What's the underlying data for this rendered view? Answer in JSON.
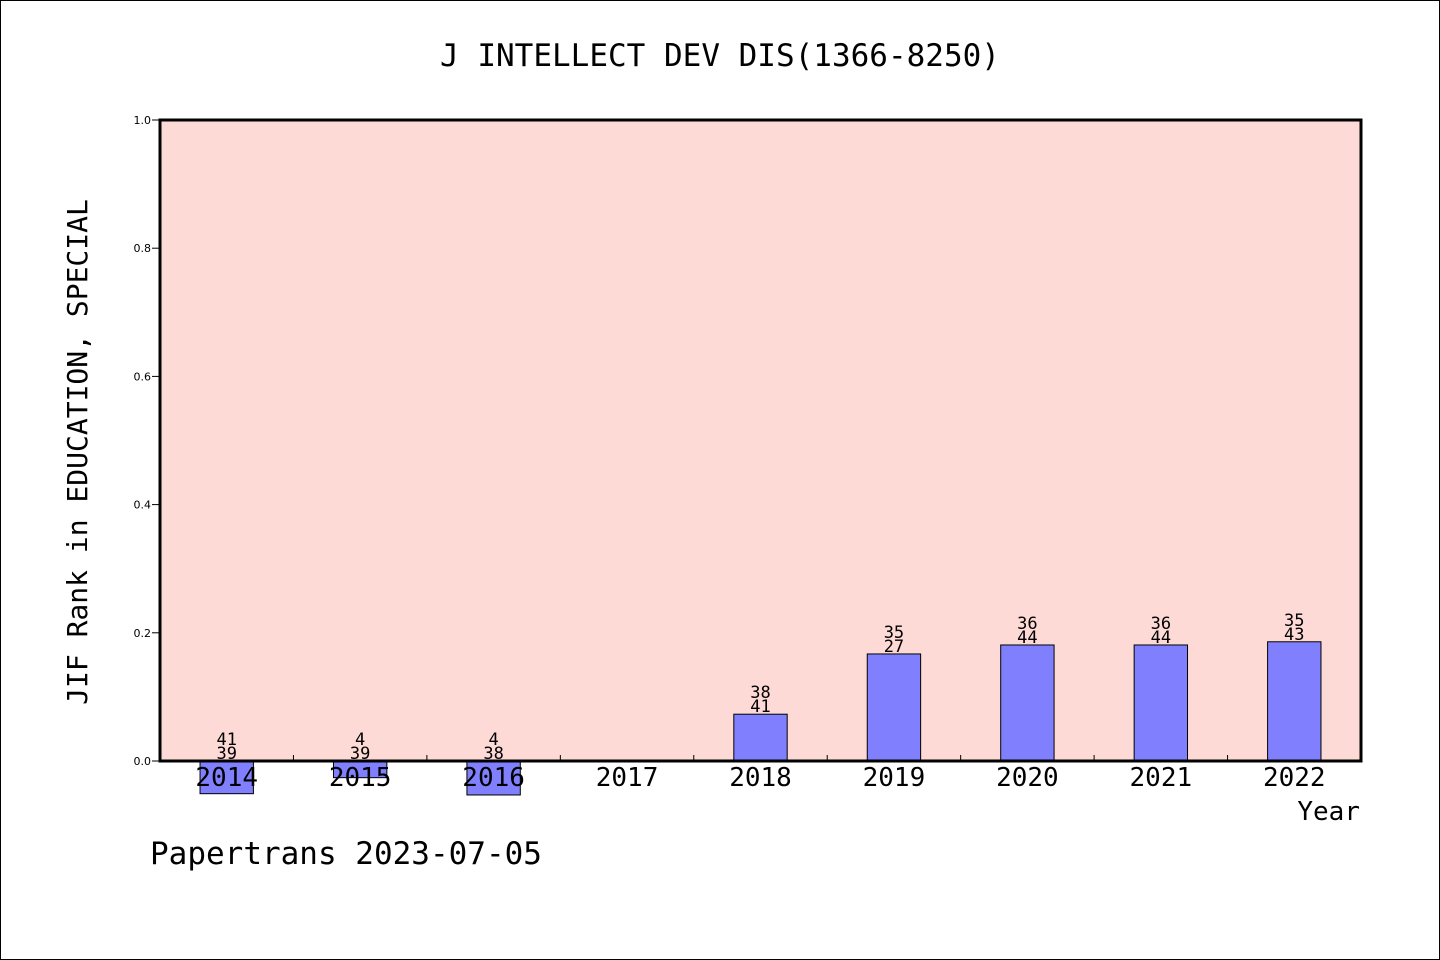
{
  "chart_data": {
    "type": "bar",
    "title": "J INTELLECT DEV DIS(1366-8250)",
    "xlabel": "Year",
    "ylabel": "JIF Rank in EDUCATION, SPECIAL",
    "ylim": [
      0,
      1.0
    ],
    "yticks": [
      "0.0",
      "0.2",
      "0.4",
      "0.6",
      "0.8",
      "1.0"
    ],
    "grid": false,
    "categories": [
      "2014",
      "2015",
      "2016",
      "2017",
      "2018",
      "2019",
      "2020",
      "2021",
      "2022"
    ],
    "values": [
      -0.051,
      -0.026,
      -0.053,
      null,
      0.073,
      0.167,
      0.181,
      0.181,
      0.186
    ],
    "top_labels": [
      "41",
      "4",
      "4",
      "",
      "38",
      "35",
      "36",
      "36",
      "35"
    ],
    "bottom_labels": [
      "39",
      "39",
      "38",
      "",
      "41",
      "27",
      "44",
      "44",
      "43"
    ],
    "colors": {
      "plot_background": "#fddad6",
      "bar_fill": "#8080ff",
      "bar_stroke": "#000000",
      "axis": "#000000"
    }
  },
  "footer": "Papertrans 2023-07-05"
}
